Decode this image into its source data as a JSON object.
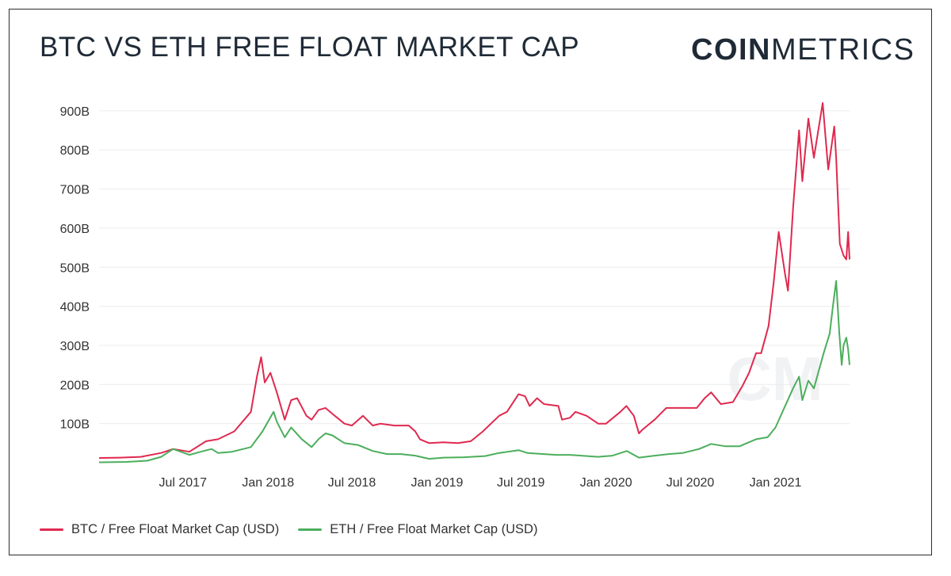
{
  "title": "BTC VS ETH FREE FLOAT MARKET CAP",
  "brand": {
    "part1": "COIN",
    "part2": "METRICS"
  },
  "watermark": "CM",
  "colors": {
    "btc": "#e0294f",
    "eth": "#4cae5c",
    "grid": "#ececec",
    "text": "#333333"
  },
  "chart_data": {
    "type": "line",
    "title": "BTC VS ETH FREE FLOAT MARKET CAP",
    "xlabel": "",
    "ylabel": "",
    "x_range": [
      "2017-01-01",
      "2021-06-10"
    ],
    "ylim": [
      0,
      920
    ],
    "y_unit": "B USD",
    "yticks": [
      100,
      200,
      300,
      400,
      500,
      600,
      700,
      800,
      900
    ],
    "ytick_labels": [
      "100B",
      "200B",
      "300B",
      "400B",
      "500B",
      "600B",
      "700B",
      "800B",
      "900B"
    ],
    "xticks": [
      "2017-07-01",
      "2018-01-01",
      "2018-07-01",
      "2019-01-01",
      "2019-07-01",
      "2020-01-01",
      "2020-07-01",
      "2021-01-01"
    ],
    "xtick_labels": [
      "Jul 2017",
      "Jan 2018",
      "Jul 2018",
      "Jan 2019",
      "Jul 2019",
      "Jan 2020",
      "Jul 2020",
      "Jan 2021"
    ],
    "grid": true,
    "legend_position": "bottom-left",
    "series": [
      {
        "name": "BTC / Free Float Market Cap (USD)",
        "color": "#e0294f",
        "points": [
          [
            "2017-01-01",
            12
          ],
          [
            "2017-02-15",
            13
          ],
          [
            "2017-04-01",
            15
          ],
          [
            "2017-05-15",
            25
          ],
          [
            "2017-06-10",
            35
          ],
          [
            "2017-07-15",
            28
          ],
          [
            "2017-08-20",
            55
          ],
          [
            "2017-09-15",
            60
          ],
          [
            "2017-10-20",
            80
          ],
          [
            "2017-11-25",
            130
          ],
          [
            "2017-12-08",
            220
          ],
          [
            "2017-12-17",
            270
          ],
          [
            "2017-12-25",
            205
          ],
          [
            "2018-01-06",
            230
          ],
          [
            "2018-01-20",
            180
          ],
          [
            "2018-02-06",
            110
          ],
          [
            "2018-02-20",
            160
          ],
          [
            "2018-03-05",
            165
          ],
          [
            "2018-03-25",
            120
          ],
          [
            "2018-04-05",
            110
          ],
          [
            "2018-04-20",
            135
          ],
          [
            "2018-05-05",
            140
          ],
          [
            "2018-05-20",
            125
          ],
          [
            "2018-06-15",
            100
          ],
          [
            "2018-07-01",
            95
          ],
          [
            "2018-07-25",
            120
          ],
          [
            "2018-08-15",
            95
          ],
          [
            "2018-09-01",
            100
          ],
          [
            "2018-10-01",
            95
          ],
          [
            "2018-11-01",
            95
          ],
          [
            "2018-11-15",
            80
          ],
          [
            "2018-11-25",
            60
          ],
          [
            "2018-12-15",
            50
          ],
          [
            "2019-01-15",
            52
          ],
          [
            "2019-02-15",
            50
          ],
          [
            "2019-03-15",
            55
          ],
          [
            "2019-04-10",
            80
          ],
          [
            "2019-05-15",
            120
          ],
          [
            "2019-06-01",
            130
          ],
          [
            "2019-06-26",
            175
          ],
          [
            "2019-07-10",
            170
          ],
          [
            "2019-07-20",
            145
          ],
          [
            "2019-08-05",
            165
          ],
          [
            "2019-08-20",
            150
          ],
          [
            "2019-09-20",
            145
          ],
          [
            "2019-09-28",
            110
          ],
          [
            "2019-10-15",
            115
          ],
          [
            "2019-10-27",
            130
          ],
          [
            "2019-11-20",
            120
          ],
          [
            "2019-12-15",
            100
          ],
          [
            "2020-01-01",
            100
          ],
          [
            "2020-02-01",
            130
          ],
          [
            "2020-02-14",
            145
          ],
          [
            "2020-03-01",
            120
          ],
          [
            "2020-03-12",
            75
          ],
          [
            "2020-03-20",
            85
          ],
          [
            "2020-04-15",
            110
          ],
          [
            "2020-05-10",
            140
          ],
          [
            "2020-06-15",
            140
          ],
          [
            "2020-07-15",
            140
          ],
          [
            "2020-08-01",
            165
          ],
          [
            "2020-08-15",
            180
          ],
          [
            "2020-09-05",
            150
          ],
          [
            "2020-10-01",
            155
          ],
          [
            "2020-10-21",
            195
          ],
          [
            "2020-11-05",
            230
          ],
          [
            "2020-11-20",
            280
          ],
          [
            "2020-12-01",
            280
          ],
          [
            "2020-12-17",
            350
          ],
          [
            "2020-12-28",
            460
          ],
          [
            "2021-01-08",
            590
          ],
          [
            "2021-01-22",
            480
          ],
          [
            "2021-01-28",
            440
          ],
          [
            "2021-02-08",
            650
          ],
          [
            "2021-02-21",
            850
          ],
          [
            "2021-02-28",
            720
          ],
          [
            "2021-03-13",
            880
          ],
          [
            "2021-03-25",
            780
          ],
          [
            "2021-04-13",
            920
          ],
          [
            "2021-04-25",
            750
          ],
          [
            "2021-05-08",
            860
          ],
          [
            "2021-05-12",
            780
          ],
          [
            "2021-05-20",
            560
          ],
          [
            "2021-05-28",
            530
          ],
          [
            "2021-06-03",
            520
          ],
          [
            "2021-06-07",
            590
          ],
          [
            "2021-06-10",
            520
          ]
        ]
      },
      {
        "name": "ETH / Free Float Market Cap (USD)",
        "color": "#4cae5c",
        "points": [
          [
            "2017-01-01",
            1
          ],
          [
            "2017-03-01",
            2
          ],
          [
            "2017-04-15",
            5
          ],
          [
            "2017-05-15",
            15
          ],
          [
            "2017-06-10",
            35
          ],
          [
            "2017-07-15",
            20
          ],
          [
            "2017-08-15",
            30
          ],
          [
            "2017-09-01",
            35
          ],
          [
            "2017-09-15",
            25
          ],
          [
            "2017-10-15",
            28
          ],
          [
            "2017-11-25",
            40
          ],
          [
            "2017-12-20",
            80
          ],
          [
            "2018-01-13",
            130
          ],
          [
            "2018-01-20",
            105
          ],
          [
            "2018-02-06",
            65
          ],
          [
            "2018-02-20",
            90
          ],
          [
            "2018-03-15",
            60
          ],
          [
            "2018-04-05",
            40
          ],
          [
            "2018-04-20",
            60
          ],
          [
            "2018-05-05",
            75
          ],
          [
            "2018-05-20",
            70
          ],
          [
            "2018-06-15",
            50
          ],
          [
            "2018-07-15",
            45
          ],
          [
            "2018-08-15",
            30
          ],
          [
            "2018-09-15",
            22
          ],
          [
            "2018-10-15",
            22
          ],
          [
            "2018-11-15",
            18
          ],
          [
            "2018-12-15",
            10
          ],
          [
            "2019-01-15",
            13
          ],
          [
            "2019-03-01",
            14
          ],
          [
            "2019-04-15",
            17
          ],
          [
            "2019-05-15",
            25
          ],
          [
            "2019-06-26",
            32
          ],
          [
            "2019-07-15",
            25
          ],
          [
            "2019-09-15",
            20
          ],
          [
            "2019-10-15",
            20
          ],
          [
            "2019-12-15",
            15
          ],
          [
            "2020-01-15",
            18
          ],
          [
            "2020-02-15",
            30
          ],
          [
            "2020-03-12",
            13
          ],
          [
            "2020-04-15",
            18
          ],
          [
            "2020-05-15",
            22
          ],
          [
            "2020-06-15",
            25
          ],
          [
            "2020-07-20",
            35
          ],
          [
            "2020-08-15",
            48
          ],
          [
            "2020-09-15",
            42
          ],
          [
            "2020-10-15",
            42
          ],
          [
            "2020-11-20",
            60
          ],
          [
            "2020-12-15",
            65
          ],
          [
            "2021-01-01",
            90
          ],
          [
            "2021-01-20",
            140
          ],
          [
            "2021-02-08",
            190
          ],
          [
            "2021-02-21",
            220
          ],
          [
            "2021-02-28",
            160
          ],
          [
            "2021-03-13",
            210
          ],
          [
            "2021-03-25",
            190
          ],
          [
            "2021-04-15",
            280
          ],
          [
            "2021-04-28",
            330
          ],
          [
            "2021-05-05",
            400
          ],
          [
            "2021-05-12",
            465
          ],
          [
            "2021-05-19",
            330
          ],
          [
            "2021-05-24",
            250
          ],
          [
            "2021-05-28",
            300
          ],
          [
            "2021-06-03",
            320
          ],
          [
            "2021-06-07",
            290
          ],
          [
            "2021-06-10",
            250
          ]
        ]
      }
    ]
  }
}
